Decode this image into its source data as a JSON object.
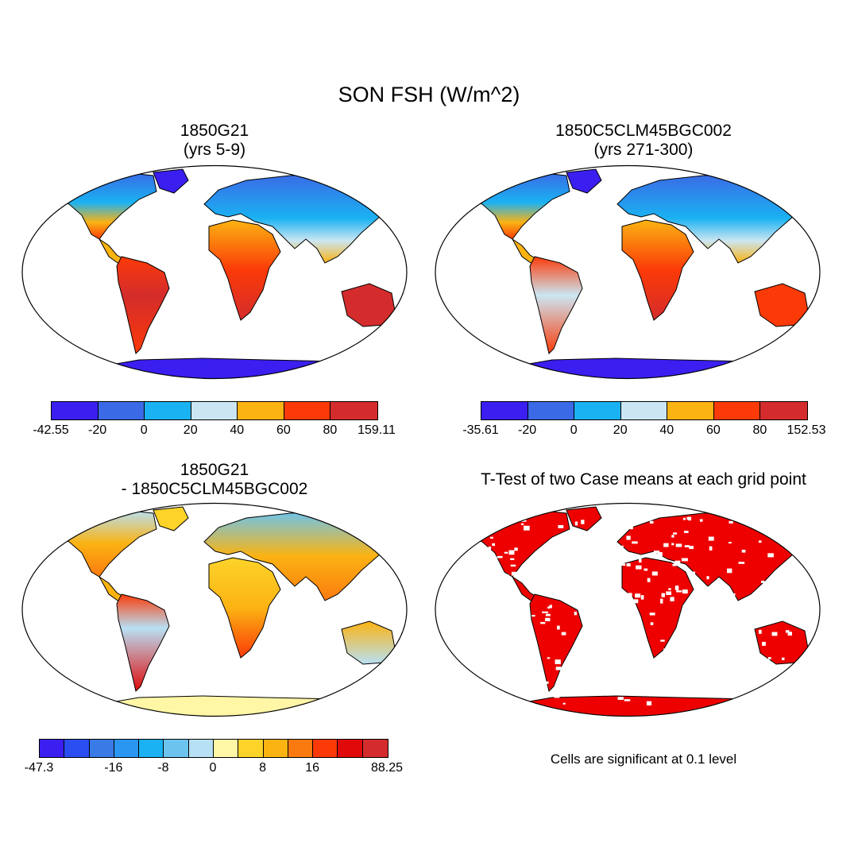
{
  "title": "SON FSH (W/m^2)",
  "panels": [
    {
      "title_line1": "1850G21",
      "title_line2": "(yrs 5-9)",
      "colorbar": {
        "colors": [
          "#3a1ff0",
          "#3a6ae6",
          "#1ab2f2",
          "#cbe6f2",
          "#fbb312",
          "#fb3a08",
          "#d42c2c"
        ],
        "labels": [
          "-42.55",
          "-20",
          "0",
          "20",
          "40",
          "60",
          "80",
          "159.11"
        ]
      }
    },
    {
      "title_line1": "1850C5CLM45BGC002",
      "title_line2": "(yrs 271-300)",
      "colorbar": {
        "colors": [
          "#3a1ff0",
          "#3a6ae6",
          "#1ab2f2",
          "#cbe6f2",
          "#fbb312",
          "#fb3a08",
          "#d42c2c"
        ],
        "labels": [
          "-35.61",
          "-20",
          "0",
          "20",
          "40",
          "60",
          "80",
          "152.53"
        ]
      }
    },
    {
      "title_line1": "1850G21",
      "title_line2": "- 1850C5CLM45BGC002",
      "colorbar": {
        "colors": [
          "#3a1ff0",
          "#2a4ef0",
          "#3a7ae6",
          "#2a96f2",
          "#1ab2f2",
          "#6cc4ee",
          "#b8e0f4",
          "#fff6a6",
          "#fdd32a",
          "#fbb312",
          "#fb7a10",
          "#fb3a08",
          "#e00a0a",
          "#d42c2c"
        ],
        "labels": [
          "-47.3",
          "-16",
          "-8",
          "0",
          "8",
          "16",
          "88.25"
        ]
      }
    },
    {
      "title": "T-Test of two Case means at each grid point",
      "note": "Cells are significant at 0.1 level",
      "color": "#ee0000"
    }
  ]
}
